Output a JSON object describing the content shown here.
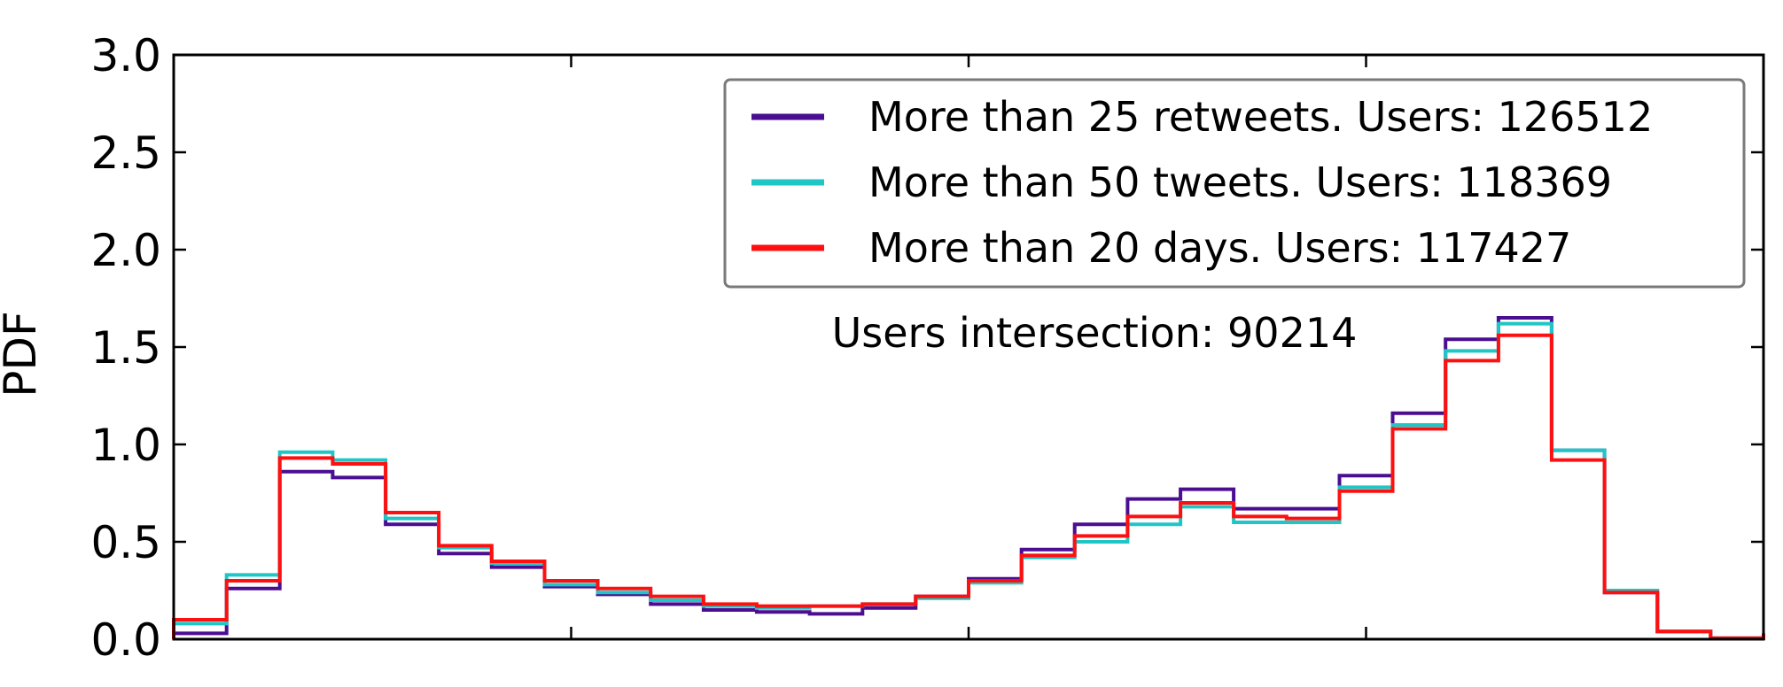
{
  "chart_data": {
    "type": "line",
    "step": true,
    "xlabel": "",
    "ylabel": "PDF",
    "xlim": [
      0,
      1
    ],
    "ylim": [
      0,
      3.0
    ],
    "yticks": [
      "0.0",
      "0.5",
      "1.0",
      "1.5",
      "2.0",
      "2.5",
      "3.0"
    ],
    "yticks_values": [
      0,
      0.5,
      1.0,
      1.5,
      2.0,
      2.5,
      3.0
    ],
    "xticks_values": [
      0.25,
      0.5,
      0.75
    ],
    "grid": false,
    "legend_position": "top-right",
    "annotation": "Users intersection: 90214",
    "bin_edges": [
      0,
      0.0333,
      0.0667,
      0.1,
      0.1333,
      0.1667,
      0.2,
      0.2333,
      0.2667,
      0.3,
      0.3333,
      0.3667,
      0.4,
      0.4333,
      0.4667,
      0.5,
      0.5333,
      0.5667,
      0.6,
      0.6333,
      0.6667,
      0.7,
      0.7333,
      0.7667,
      0.8,
      0.8333,
      0.8667,
      0.9,
      0.9333,
      0.9667,
      1.0
    ],
    "series": [
      {
        "name": "More than 25 retweets. Users: 126512",
        "color": "#4b0e90",
        "values": [
          0.03,
          0.26,
          0.86,
          0.83,
          0.59,
          0.44,
          0.37,
          0.27,
          0.23,
          0.18,
          0.15,
          0.14,
          0.13,
          0.16,
          0.22,
          0.31,
          0.46,
          0.59,
          0.72,
          0.77,
          0.67,
          0.67,
          0.84,
          1.16,
          1.54,
          1.65,
          0.97,
          0.24,
          0.04,
          0.005,
          0.02
        ]
      },
      {
        "name": "More than 50 tweets. Users: 118369",
        "color": "#1fc6c6",
        "values": [
          0.08,
          0.33,
          0.96,
          0.92,
          0.62,
          0.47,
          0.39,
          0.28,
          0.24,
          0.2,
          0.17,
          0.16,
          0.17,
          0.18,
          0.21,
          0.29,
          0.42,
          0.5,
          0.59,
          0.68,
          0.6,
          0.6,
          0.78,
          1.1,
          1.48,
          1.62,
          0.97,
          0.25,
          0.04,
          0.005,
          0.02
        ]
      },
      {
        "name": "More than 20 days. Users: 117427",
        "color": "#ff1010",
        "values": [
          0.1,
          0.3,
          0.93,
          0.9,
          0.65,
          0.48,
          0.4,
          0.3,
          0.26,
          0.22,
          0.18,
          0.17,
          0.17,
          0.18,
          0.22,
          0.3,
          0.43,
          0.53,
          0.63,
          0.7,
          0.63,
          0.62,
          0.76,
          1.08,
          1.43,
          1.56,
          0.92,
          0.24,
          0.04,
          0.005,
          0.03
        ]
      }
    ]
  }
}
